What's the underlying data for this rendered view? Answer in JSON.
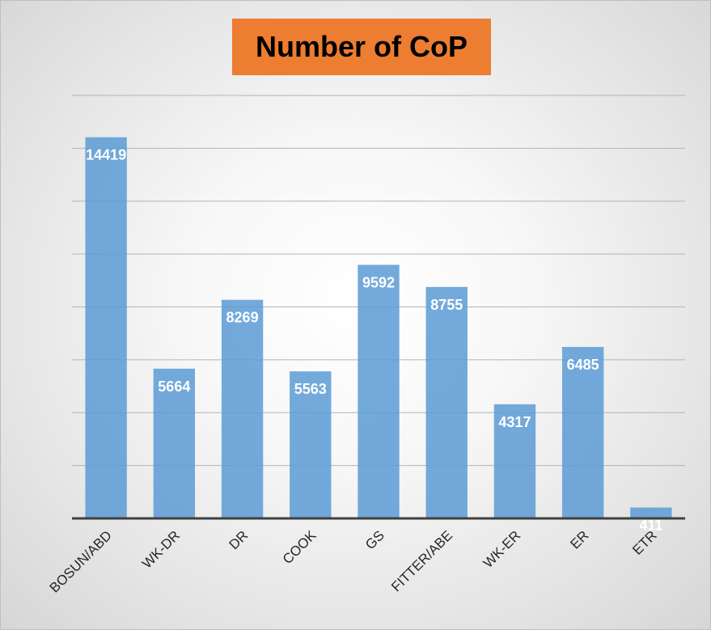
{
  "chart_data": {
    "type": "bar",
    "title": "Number of CoP",
    "categories": [
      "BOSUN/ABD",
      "WK-DR",
      "DR",
      "COOK",
      "GS",
      "FITTER/ABE",
      "WK-ER",
      "ER",
      "ETR"
    ],
    "values": [
      14419,
      5664,
      8269,
      5563,
      9592,
      8755,
      4317,
      6485,
      411
    ],
    "data_labels": [
      "14419",
      "5664",
      "8269",
      "5563",
      "9592",
      "8755",
      "4317",
      "6485",
      "411"
    ],
    "ylim": [
      0,
      16000
    ],
    "gridline_step": 2000,
    "grid": true,
    "y_tick_labels_shown": false,
    "legend": "none",
    "colors": {
      "bar": "#5b9bd5",
      "title_background": "#ed7d31",
      "data_label": "#ffffff",
      "gridline": "#b4b4b4",
      "axis": "#404040"
    }
  }
}
